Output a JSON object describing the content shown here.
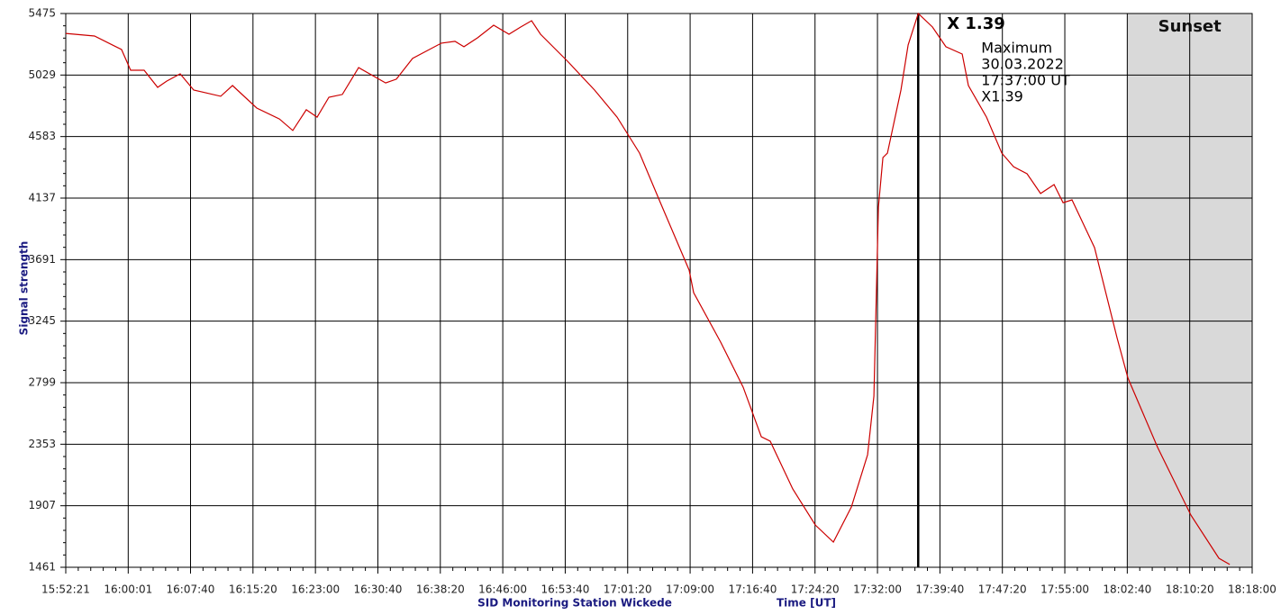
{
  "chart_data": {
    "type": "line",
    "y_label": "Signal strength",
    "x_label": "Time [UT]",
    "footer": "SID Monitoring Station Wickede",
    "x": [
      "15:52:21",
      "15:55:53",
      "15:59:12",
      "16:00:19",
      "16:01:58",
      "16:03:38",
      "16:04:44",
      "16:06:24",
      "16:08:03",
      "16:11:22",
      "16:12:49",
      "16:15:48",
      "16:18:34",
      "16:20:13",
      "16:21:53",
      "16:23:12",
      "16:24:39",
      "16:26:18",
      "16:28:18",
      "16:31:37",
      "16:32:56",
      "16:34:56",
      "16:38:28",
      "16:40:08",
      "16:41:14",
      "16:42:54",
      "16:44:53",
      "16:46:46",
      "16:48:12",
      "16:49:32",
      "16:50:38",
      "16:53:57",
      "16:57:16",
      "17:00:02",
      "17:02:48",
      "17:05:21",
      "17:08:53",
      "17:09:26",
      "17:12:45",
      "17:15:31",
      "17:17:44",
      "17:18:50",
      "17:21:36",
      "17:24:22",
      "17:26:35",
      "17:28:48",
      "17:30:47",
      "17:31:34",
      "17:32:07",
      "17:32:40",
      "17:33:13",
      "17:34:53",
      "17:35:46",
      "17:37:00",
      "17:38:45",
      "17:40:24",
      "17:42:24",
      "17:43:10",
      "17:45:23",
      "17:47:16",
      "17:48:42",
      "17:50:22",
      "17:52:01",
      "17:53:41",
      "17:54:47",
      "17:55:53",
      "17:58:39",
      "18:01:25",
      "18:02:45",
      "18:06:24",
      "18:10:29",
      "18:13:55",
      "18:15:15"
    ],
    "series": [
      {
        "name": "Signal",
        "color": "#cc0000",
        "values": [
          5331,
          5312,
          5214,
          5064,
          5064,
          4940,
          4985,
          5038,
          4920,
          4875,
          4953,
          4790,
          4711,
          4627,
          4777,
          4724,
          4868,
          4888,
          5083,
          4972,
          4999,
          5149,
          5260,
          5273,
          5234,
          5299,
          5390,
          5325,
          5377,
          5423,
          5325,
          5129,
          4920,
          4724,
          4463,
          4104,
          3615,
          3452,
          3093,
          2766,
          2407,
          2375,
          2029,
          1768,
          1644,
          1898,
          2277,
          2701,
          4072,
          4431,
          4463,
          4920,
          5247,
          5475,
          5377,
          5234,
          5181,
          4953,
          4724,
          4463,
          4365,
          4313,
          4170,
          4235,
          4104,
          4124,
          3778,
          3125,
          2832,
          2329,
          1839,
          1526,
          1481
        ]
      }
    ],
    "xlim": [
      "15:52:21",
      "18:18:00"
    ],
    "xticks": [
      "15:52:21",
      "16:00:01",
      "16:07:40",
      "16:15:20",
      "16:23:00",
      "16:30:40",
      "16:38:20",
      "16:46:00",
      "16:53:40",
      "17:01:20",
      "17:09:00",
      "17:16:40",
      "17:24:20",
      "17:32:00",
      "17:39:40",
      "17:47:20",
      "17:55:00",
      "18:02:40",
      "18:10:20",
      "18:18:00"
    ],
    "ylim": [
      1461,
      5475
    ],
    "yticks": [
      1461,
      1907,
      2353,
      2799,
      3245,
      3691,
      4137,
      4583,
      5029,
      5475
    ],
    "grid": true,
    "marker": {
      "x": "17:37:00",
      "label": "X 1.39"
    },
    "info": [
      "Maximum",
      "30.03.2022",
      "17:37:00 UT",
      "X1.39"
    ],
    "shade": {
      "start": "18:02:40",
      "label": "Sunset",
      "color": "#d9d9d9"
    }
  }
}
